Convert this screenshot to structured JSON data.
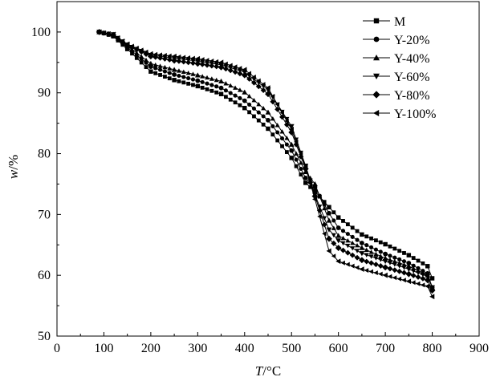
{
  "chart_data": {
    "type": "line",
    "title": "",
    "xlabel": {
      "var": "T",
      "unit": "/°C"
    },
    "ylabel": {
      "var": "w",
      "unit": "/%"
    },
    "xlim": [
      0,
      900
    ],
    "ylim": [
      50,
      105
    ],
    "xticks": [
      0,
      100,
      200,
      300,
      400,
      500,
      600,
      700,
      800,
      900
    ],
    "yticks": [
      50,
      60,
      70,
      80,
      90,
      100
    ],
    "xtick_labels": [
      "0",
      "100",
      "200",
      "300",
      "400",
      "500",
      "600",
      "700",
      "800",
      "900"
    ],
    "ytick_labels": [
      "50",
      "60",
      "70",
      "80",
      "90",
      "100"
    ],
    "legend_position": "top-right",
    "series": [
      {
        "name": "M",
        "marker": "square",
        "x": [
          90,
          120,
          150,
          200,
          250,
          300,
          350,
          400,
          450,
          500,
          530,
          550,
          580,
          600,
          650,
          700,
          750,
          790,
          800
        ],
        "y": [
          100,
          99.3,
          97.2,
          93.5,
          92.1,
          91.1,
          89.8,
          87.5,
          84.1,
          79.3,
          75.2,
          73.8,
          71.2,
          69.5,
          66.7,
          65.1,
          63.3,
          61.5,
          59.5
        ]
      },
      {
        "name": "Y-20%",
        "marker": "circle",
        "x": [
          90,
          120,
          150,
          200,
          250,
          300,
          350,
          400,
          450,
          500,
          530,
          550,
          580,
          600,
          650,
          700,
          750,
          790,
          800
        ],
        "y": [
          100,
          99.4,
          97.5,
          94.3,
          93.0,
          92.0,
          90.8,
          88.7,
          85.5,
          80.5,
          76.0,
          74.5,
          70.2,
          67.8,
          65.3,
          63.5,
          62.0,
          60.3,
          58.0
        ]
      },
      {
        "name": "Y-40%",
        "marker": "triangle-up",
        "x": [
          90,
          120,
          150,
          200,
          250,
          300,
          350,
          400,
          450,
          500,
          530,
          550,
          580,
          600,
          650,
          700,
          750,
          790,
          800
        ],
        "y": [
          100,
          99.5,
          97.7,
          94.8,
          93.8,
          92.9,
          91.9,
          90.1,
          86.8,
          81.5,
          77.0,
          75.0,
          69.0,
          66.5,
          64.5,
          62.8,
          61.5,
          60.0,
          58.0
        ]
      },
      {
        "name": "Y-60%",
        "marker": "triangle-down",
        "x": [
          90,
          120,
          150,
          200,
          250,
          300,
          350,
          400,
          450,
          500,
          530,
          550,
          580,
          600,
          650,
          700,
          750,
          790,
          800
        ],
        "y": [
          100,
          99.6,
          97.9,
          96.2,
          95.7,
          95.2,
          94.6,
          93.4,
          90.5,
          84.5,
          78.0,
          73.2,
          67.5,
          65.7,
          63.6,
          62.3,
          61.0,
          59.8,
          58.0
        ]
      },
      {
        "name": "Y-80%",
        "marker": "diamond",
        "x": [
          90,
          120,
          150,
          200,
          250,
          300,
          350,
          400,
          450,
          500,
          530,
          550,
          580,
          600,
          650,
          700,
          750,
          790,
          800
        ],
        "y": [
          100,
          99.5,
          97.8,
          96.0,
          95.3,
          94.8,
          94.2,
          92.9,
          89.8,
          83.5,
          77.5,
          73.0,
          66.0,
          64.5,
          62.5,
          61.3,
          60.2,
          59.2,
          57.5
        ]
      },
      {
        "name": "Y-100%",
        "marker": "triangle-left",
        "x": [
          90,
          120,
          150,
          200,
          250,
          300,
          350,
          400,
          450,
          500,
          530,
          550,
          580,
          600,
          650,
          700,
          750,
          790,
          800
        ],
        "y": [
          100,
          99.6,
          98.0,
          96.4,
          96.0,
          95.6,
          95.0,
          93.8,
          90.8,
          84.0,
          77.8,
          72.5,
          64.0,
          62.3,
          61.0,
          60.0,
          59.0,
          58.2,
          56.5
        ]
      }
    ]
  }
}
